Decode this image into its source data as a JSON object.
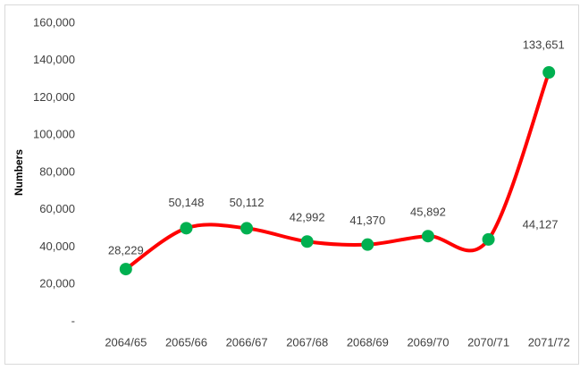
{
  "chart_data": {
    "type": "line",
    "y_label": "Numbers",
    "categories": [
      "2064/65",
      "2065/66",
      "2066/67",
      "2067/68",
      "2068/69",
      "2069/70",
      "2070/71",
      "2071/72"
    ],
    "values": [
      28229,
      50148,
      50112,
      42992,
      41370,
      45892,
      44127,
      133651
    ],
    "value_labels": [
      "28,229",
      "50,148",
      "50,112",
      "42,992",
      "41,370",
      "45,892",
      "44,127",
      "133,651"
    ],
    "color": "#ff0000",
    "marker_color": "#00b050",
    "smooth": true,
    "ylim": [
      0,
      160000
    ],
    "yticks": [
      {
        "value": 0,
        "label": "-"
      },
      {
        "value": 20000,
        "label": "20,000"
      },
      {
        "value": 40000,
        "label": "40,000"
      },
      {
        "value": 60000,
        "label": "60,000"
      },
      {
        "value": 80000,
        "label": "80,000"
      },
      {
        "value": 100000,
        "label": "100,000"
      },
      {
        "value": 120000,
        "label": "120,000"
      },
      {
        "value": 140000,
        "label": "140,000"
      },
      {
        "value": 160000,
        "label": "160,000"
      }
    ],
    "grid": false
  }
}
